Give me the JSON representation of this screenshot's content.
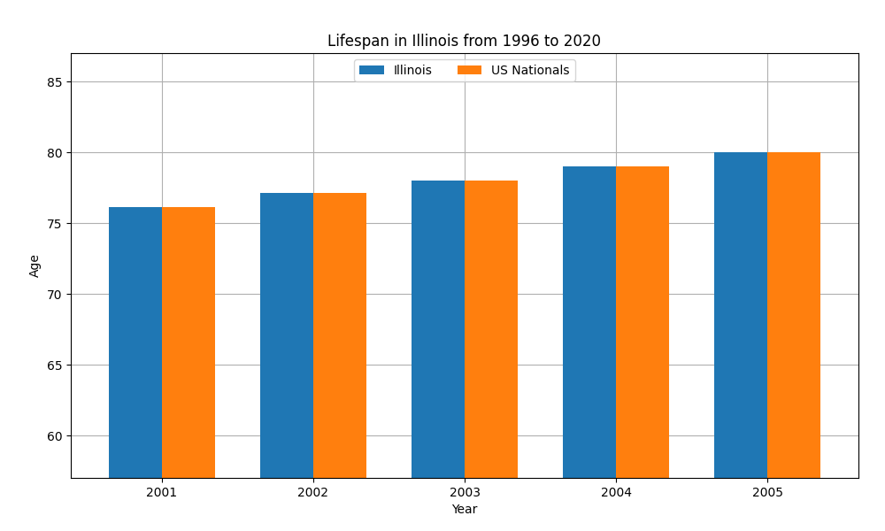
{
  "chart_data": {
    "type": "bar",
    "title": "Lifespan in Illinois from 1996 to 2020",
    "xlabel": "Year",
    "ylabel": "Age",
    "categories": [
      "2001",
      "2002",
      "2003",
      "2004",
      "2005"
    ],
    "series": [
      {
        "name": "Illinois",
        "values": [
          76.1,
          77.1,
          78.0,
          79.0,
          80.0
        ]
      },
      {
        "name": "US Nationals",
        "values": [
          76.1,
          77.1,
          78.0,
          79.0,
          80.0
        ]
      }
    ],
    "ylim": [
      57,
      87
    ],
    "yticks": [
      60,
      65,
      70,
      75,
      80,
      85
    ],
    "grid": true,
    "legend": "upper center"
  }
}
